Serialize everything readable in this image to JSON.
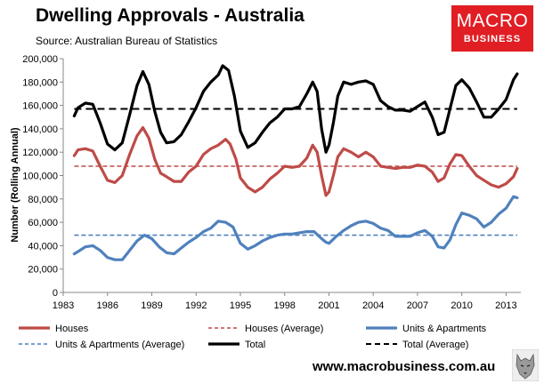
{
  "header": {
    "title": "Dwelling Approvals - Australia",
    "source": "Source: Australian Bureau of Statistics"
  },
  "logo": {
    "line1": "MACRO",
    "line2": "BUSINESS",
    "bg_color": "#e01e24"
  },
  "footer": {
    "website": "www.macrobusiness.com.au",
    "mascot_icon": "wolf-head-icon"
  },
  "chart_data": {
    "type": "line",
    "title": "Dwelling Approvals - Australia",
    "ylabel": "Number (Rolling Annual)",
    "xlabel": "",
    "xlim": [
      1983,
      2014
    ],
    "ylim": [
      0,
      200000
    ],
    "x_ticks": [
      "1983",
      "1986",
      "1989",
      "1992",
      "1995",
      "1998",
      "2001",
      "2004",
      "2007",
      "2010",
      "2013"
    ],
    "y_ticks": [
      "0",
      "20,000",
      "40,000",
      "60,000",
      "80,000",
      "100,000",
      "120,000",
      "140,000",
      "160,000",
      "180,000",
      "200,000"
    ],
    "grid": false,
    "legend": "bottom",
    "series": [
      {
        "name": "Houses",
        "color": "#be4b48",
        "style": "solid",
        "points": [
          [
            1983.75,
            117000
          ],
          [
            1984.0,
            122000
          ],
          [
            1984.5,
            123000
          ],
          [
            1985.0,
            121000
          ],
          [
            1985.5,
            108000
          ],
          [
            1986.0,
            96000
          ],
          [
            1986.5,
            94000
          ],
          [
            1987.0,
            100000
          ],
          [
            1987.5,
            118000
          ],
          [
            1988.0,
            134000
          ],
          [
            1988.4,
            141000
          ],
          [
            1988.8,
            132000
          ],
          [
            1989.2,
            114000
          ],
          [
            1989.6,
            102000
          ],
          [
            1990.0,
            99000
          ],
          [
            1990.5,
            95000
          ],
          [
            1991.0,
            95000
          ],
          [
            1991.5,
            103000
          ],
          [
            1992.0,
            108000
          ],
          [
            1992.5,
            118000
          ],
          [
            1993.0,
            123000
          ],
          [
            1993.5,
            126000
          ],
          [
            1994.0,
            131000
          ],
          [
            1994.3,
            127000
          ],
          [
            1994.7,
            114000
          ],
          [
            1995.0,
            98000
          ],
          [
            1995.5,
            90000
          ],
          [
            1996.0,
            86000
          ],
          [
            1996.5,
            90000
          ],
          [
            1997.0,
            97000
          ],
          [
            1997.5,
            102000
          ],
          [
            1998.0,
            108000
          ],
          [
            1998.5,
            107000
          ],
          [
            1999.0,
            108000
          ],
          [
            1999.5,
            115000
          ],
          [
            1999.9,
            126000
          ],
          [
            2000.2,
            120000
          ],
          [
            2000.5,
            100000
          ],
          [
            2000.8,
            83000
          ],
          [
            2001.0,
            86000
          ],
          [
            2001.3,
            100000
          ],
          [
            2001.6,
            116000
          ],
          [
            2002.0,
            123000
          ],
          [
            2002.5,
            120000
          ],
          [
            2003.0,
            116000
          ],
          [
            2003.5,
            120000
          ],
          [
            2004.0,
            116000
          ],
          [
            2004.5,
            108000
          ],
          [
            2005.0,
            107000
          ],
          [
            2005.5,
            106000
          ],
          [
            2006.0,
            107000
          ],
          [
            2006.5,
            107000
          ],
          [
            2007.0,
            109000
          ],
          [
            2007.5,
            108000
          ],
          [
            2008.0,
            103000
          ],
          [
            2008.4,
            95000
          ],
          [
            2008.8,
            98000
          ],
          [
            2009.2,
            110000
          ],
          [
            2009.6,
            118000
          ],
          [
            2010.0,
            117000
          ],
          [
            2010.5,
            108000
          ],
          [
            2011.0,
            100000
          ],
          [
            2011.5,
            96000
          ],
          [
            2012.0,
            92000
          ],
          [
            2012.5,
            90000
          ],
          [
            2013.0,
            93000
          ],
          [
            2013.5,
            99000
          ],
          [
            2013.75,
            106000
          ]
        ]
      },
      {
        "name": "Houses (Average)",
        "color": "#be4b48",
        "style": "dashed",
        "points": [
          [
            1983.75,
            108000
          ],
          [
            2013.75,
            108000
          ]
        ]
      },
      {
        "name": "Units & Apartments",
        "color": "#4f81bd",
        "style": "solid",
        "points": [
          [
            1983.75,
            33000
          ],
          [
            1984.0,
            35000
          ],
          [
            1984.5,
            39000
          ],
          [
            1985.0,
            40000
          ],
          [
            1985.5,
            36000
          ],
          [
            1986.0,
            30000
          ],
          [
            1986.5,
            28000
          ],
          [
            1987.0,
            28000
          ],
          [
            1987.5,
            36000
          ],
          [
            1988.0,
            44000
          ],
          [
            1988.5,
            49000
          ],
          [
            1989.0,
            46000
          ],
          [
            1989.5,
            39000
          ],
          [
            1990.0,
            34000
          ],
          [
            1990.5,
            33000
          ],
          [
            1991.0,
            38000
          ],
          [
            1991.5,
            43000
          ],
          [
            1992.0,
            47000
          ],
          [
            1992.5,
            52000
          ],
          [
            1993.0,
            55000
          ],
          [
            1993.5,
            61000
          ],
          [
            1994.0,
            60000
          ],
          [
            1994.5,
            56000
          ],
          [
            1995.0,
            42000
          ],
          [
            1995.5,
            37000
          ],
          [
            1996.0,
            40000
          ],
          [
            1996.5,
            44000
          ],
          [
            1997.0,
            47000
          ],
          [
            1997.5,
            49000
          ],
          [
            1998.0,
            50000
          ],
          [
            1998.5,
            50000
          ],
          [
            1999.0,
            51000
          ],
          [
            1999.5,
            52000
          ],
          [
            2000.0,
            52000
          ],
          [
            2000.5,
            46000
          ],
          [
            2000.8,
            43000
          ],
          [
            2001.0,
            42000
          ],
          [
            2001.5,
            48000
          ],
          [
            2002.0,
            53000
          ],
          [
            2002.5,
            57000
          ],
          [
            2003.0,
            60000
          ],
          [
            2003.5,
            61000
          ],
          [
            2004.0,
            59000
          ],
          [
            2004.5,
            55000
          ],
          [
            2005.0,
            53000
          ],
          [
            2005.5,
            48000
          ],
          [
            2006.0,
            48000
          ],
          [
            2006.5,
            48000
          ],
          [
            2007.0,
            51000
          ],
          [
            2007.5,
            53000
          ],
          [
            2008.0,
            48000
          ],
          [
            2008.4,
            39000
          ],
          [
            2008.8,
            38000
          ],
          [
            2009.2,
            45000
          ],
          [
            2009.6,
            58000
          ],
          [
            2010.0,
            68000
          ],
          [
            2010.5,
            66000
          ],
          [
            2011.0,
            63000
          ],
          [
            2011.5,
            56000
          ],
          [
            2012.0,
            60000
          ],
          [
            2012.5,
            67000
          ],
          [
            2013.0,
            72000
          ],
          [
            2013.5,
            82000
          ],
          [
            2013.75,
            81000
          ]
        ]
      },
      {
        "name": "Units & Apartments (Average)",
        "color": "#4f81bd",
        "style": "dashed",
        "points": [
          [
            1983.75,
            49000
          ],
          [
            2013.75,
            49000
          ]
        ]
      },
      {
        "name": "Total",
        "color": "#000000",
        "style": "solid",
        "points": [
          [
            1983.75,
            151000
          ],
          [
            1984.0,
            158000
          ],
          [
            1984.5,
            162000
          ],
          [
            1985.0,
            161000
          ],
          [
            1985.5,
            145000
          ],
          [
            1986.0,
            127000
          ],
          [
            1986.5,
            122000
          ],
          [
            1987.0,
            128000
          ],
          [
            1987.5,
            152000
          ],
          [
            1988.0,
            177000
          ],
          [
            1988.4,
            189000
          ],
          [
            1988.8,
            178000
          ],
          [
            1989.2,
            155000
          ],
          [
            1989.6,
            137000
          ],
          [
            1990.0,
            128000
          ],
          [
            1990.5,
            129000
          ],
          [
            1991.0,
            135000
          ],
          [
            1991.5,
            146000
          ],
          [
            1992.0,
            158000
          ],
          [
            1992.5,
            172000
          ],
          [
            1993.0,
            180000
          ],
          [
            1993.5,
            186000
          ],
          [
            1993.8,
            194000
          ],
          [
            1994.2,
            190000
          ],
          [
            1994.6,
            168000
          ],
          [
            1995.0,
            138000
          ],
          [
            1995.5,
            124000
          ],
          [
            1996.0,
            128000
          ],
          [
            1996.5,
            137000
          ],
          [
            1997.0,
            145000
          ],
          [
            1997.5,
            150000
          ],
          [
            1998.0,
            157000
          ],
          [
            1998.5,
            157000
          ],
          [
            1999.0,
            159000
          ],
          [
            1999.5,
            170000
          ],
          [
            1999.9,
            180000
          ],
          [
            2000.2,
            172000
          ],
          [
            2000.5,
            140000
          ],
          [
            2000.8,
            120000
          ],
          [
            2001.0,
            126000
          ],
          [
            2001.3,
            145000
          ],
          [
            2001.6,
            168000
          ],
          [
            2002.0,
            180000
          ],
          [
            2002.5,
            178000
          ],
          [
            2003.0,
            180000
          ],
          [
            2003.5,
            181000
          ],
          [
            2004.0,
            178000
          ],
          [
            2004.5,
            164000
          ],
          [
            2005.0,
            159000
          ],
          [
            2005.5,
            156000
          ],
          [
            2006.0,
            156000
          ],
          [
            2006.5,
            155000
          ],
          [
            2007.0,
            159000
          ],
          [
            2007.5,
            163000
          ],
          [
            2008.0,
            150000
          ],
          [
            2008.4,
            135000
          ],
          [
            2008.8,
            137000
          ],
          [
            2009.2,
            157000
          ],
          [
            2009.6,
            177000
          ],
          [
            2010.0,
            182000
          ],
          [
            2010.5,
            175000
          ],
          [
            2011.0,
            163000
          ],
          [
            2011.5,
            150000
          ],
          [
            2012.0,
            150000
          ],
          [
            2012.5,
            157000
          ],
          [
            2013.0,
            165000
          ],
          [
            2013.5,
            182000
          ],
          [
            2013.75,
            187000
          ]
        ]
      },
      {
        "name": "Total (Average)",
        "color": "#000000",
        "style": "dashed",
        "points": [
          [
            1983.75,
            157000
          ],
          [
            2013.75,
            157000
          ]
        ]
      }
    ]
  }
}
